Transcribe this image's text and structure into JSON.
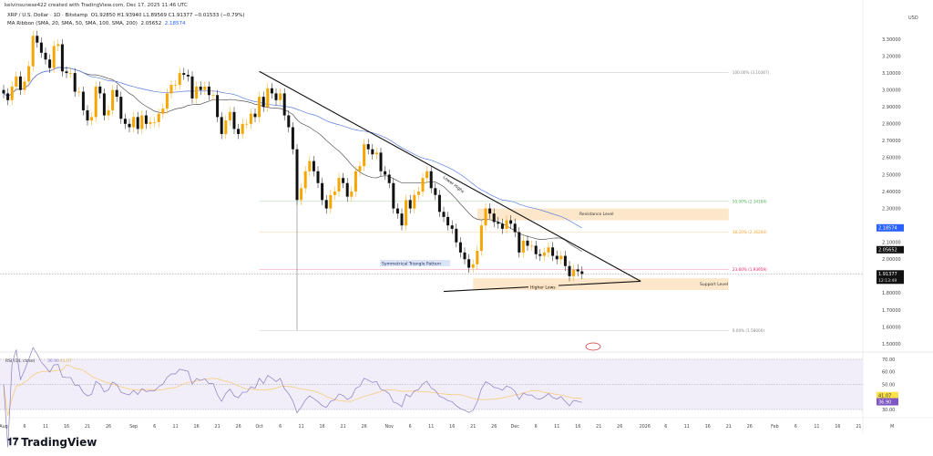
{
  "header": {
    "credit": "kelvinsunese422 created with TradingView.com, Dec 17, 2025 11:46 UTC",
    "symbol": "XRP / U.S. Dollar · 1D · Bitstamp",
    "ohlc": "O1.92850 H1.93940 L1.89569 C1.91377 −0.01533 (−0.79%)",
    "ma_label": "MA Ribbon (SMA, 20, SMA, 50, SMA, 100, SMA, 200)",
    "ma_value1": "2.05652",
    "ma_value2": "2.18574"
  },
  "price_axis": {
    "currency": "USD",
    "ticks": [
      "3.30000",
      "3.20000",
      "3.10000",
      "3.00000",
      "2.90000",
      "2.80000",
      "2.70000",
      "2.60000",
      "2.50000",
      "2.40000",
      "2.30000",
      "2.10000",
      "2.00000",
      "1.80000",
      "1.70000",
      "1.60000",
      "1.50000"
    ],
    "sma50_label": "2.18574",
    "sma20_label": "2.05652",
    "last_price_label": "1.91377",
    "countdown": "12:13:49"
  },
  "rsi": {
    "legend": "RSI (14, close)",
    "value": "36.90",
    "ma_value": "41.07",
    "ticks": [
      "70.00",
      "60.00",
      "50.00",
      "30.00"
    ],
    "value_label": "36.90",
    "ma_label": "41.07"
  },
  "time_axis": {
    "labels": [
      {
        "d": "2025-08-01",
        "t": "Aug"
      },
      {
        "d": "2025-08-06",
        "t": "6"
      },
      {
        "d": "2025-08-11",
        "t": "11"
      },
      {
        "d": "2025-08-16",
        "t": "16"
      },
      {
        "d": "2025-08-21",
        "t": "21"
      },
      {
        "d": "2025-08-26",
        "t": "26"
      },
      {
        "d": "2025-09-01",
        "t": "Sep"
      },
      {
        "d": "2025-09-06",
        "t": "6"
      },
      {
        "d": "2025-09-11",
        "t": "11"
      },
      {
        "d": "2025-09-16",
        "t": "16"
      },
      {
        "d": "2025-09-21",
        "t": "21"
      },
      {
        "d": "2025-09-26",
        "t": "26"
      },
      {
        "d": "2025-10-01",
        "t": "Oct"
      },
      {
        "d": "2025-10-06",
        "t": "6"
      },
      {
        "d": "2025-10-11",
        "t": "11"
      },
      {
        "d": "2025-10-16",
        "t": "16"
      },
      {
        "d": "2025-10-21",
        "t": "21"
      },
      {
        "d": "2025-10-26",
        "t": "26"
      },
      {
        "d": "2025-11-01",
        "t": "Nov"
      },
      {
        "d": "2025-11-06",
        "t": "6"
      },
      {
        "d": "2025-11-11",
        "t": "11"
      },
      {
        "d": "2025-11-16",
        "t": "16"
      },
      {
        "d": "2025-11-21",
        "t": "21"
      },
      {
        "d": "2025-11-26",
        "t": "26"
      },
      {
        "d": "2025-12-01",
        "t": "Dec"
      },
      {
        "d": "2025-12-06",
        "t": "6"
      },
      {
        "d": "2025-12-11",
        "t": "11"
      },
      {
        "d": "2025-12-16",
        "t": "16"
      },
      {
        "d": "2025-12-21",
        "t": "21"
      },
      {
        "d": "2025-12-26",
        "t": "26"
      },
      {
        "d": "2026-01-01",
        "t": "2026"
      },
      {
        "d": "2026-01-06",
        "t": "6"
      },
      {
        "d": "2026-01-11",
        "t": "11"
      },
      {
        "d": "2026-01-16",
        "t": "16"
      },
      {
        "d": "2026-01-21",
        "t": "21"
      },
      {
        "d": "2026-01-26",
        "t": "26"
      },
      {
        "d": "2026-02-01",
        "t": "Feb"
      },
      {
        "d": "2026-02-06",
        "t": "6"
      },
      {
        "d": "2026-02-11",
        "t": "11"
      },
      {
        "d": "2026-02-16",
        "t": "16"
      },
      {
        "d": "2026-02-21",
        "t": "21"
      },
      {
        "d": "2026-03-01",
        "t": "M"
      }
    ]
  },
  "colors": {
    "up": "#f7a600",
    "down": "#111111",
    "sma20": "#555555",
    "sma50": "#5b7fe0",
    "rsi": "#8e7cc3",
    "rsi_ma": "#f5d08a",
    "rsi_bg": "#f1eefa",
    "zone": "#fde3c2"
  },
  "chart_data": {
    "type": "candlestick",
    "start_date": "2025-08-01",
    "ylim": [
      1.45,
      3.38
    ],
    "closes": [
      2.98,
      2.94,
      3.02,
      3.08,
      3.0,
      3.05,
      3.14,
      3.32,
      3.28,
      3.22,
      3.18,
      3.13,
      3.26,
      3.27,
      3.11,
      3.1,
      3.1,
      2.99,
      2.99,
      2.88,
      2.82,
      2.84,
      3.02,
      2.98,
      2.85,
      2.88,
      3.0,
      2.96,
      2.83,
      2.8,
      2.78,
      2.84,
      2.77,
      2.85,
      2.8,
      2.81,
      2.81,
      2.86,
      2.89,
      2.98,
      3.03,
      3.03,
      3.1,
      3.09,
      3.08,
      2.95,
      3.02,
      3.0,
      3.02,
      2.97,
      2.97,
      2.84,
      2.74,
      2.82,
      2.87,
      2.77,
      2.74,
      2.8,
      2.8,
      2.86,
      2.84,
      2.96,
      2.9,
      3.01,
      2.98,
      2.94,
      2.98,
      2.85,
      2.78,
      2.65,
      2.35,
      2.42,
      2.52,
      2.58,
      2.52,
      2.45,
      2.35,
      2.3,
      2.38,
      2.4,
      2.48,
      2.45,
      2.37,
      2.4,
      2.52,
      2.55,
      2.68,
      2.65,
      2.62,
      2.63,
      2.52,
      2.5,
      2.45,
      2.3,
      2.27,
      2.2,
      2.35,
      2.3,
      2.38,
      2.4,
      2.48,
      2.52,
      2.42,
      2.38,
      2.28,
      2.25,
      2.2,
      2.18,
      2.1,
      2.04,
      2.0,
      1.95,
      1.97,
      2.05,
      2.2,
      2.3,
      2.27,
      2.22,
      2.21,
      2.18,
      2.23,
      2.21,
      2.16,
      2.04,
      2.11,
      2.08,
      2.08,
      2.03,
      2.02,
      2.04,
      2.07,
      2.02,
      2.0,
      2.02,
      1.96,
      1.9,
      1.94,
      1.9285,
      1.91377
    ],
    "notable_low": {
      "date": "2025-10-10",
      "price": 1.58
    },
    "fib_levels": [
      {
        "level": "100.00%",
        "price": 3.10367,
        "label": "100.00% (3.10367)",
        "color": "#888888"
      },
      {
        "level": "50.00%",
        "price": 2.34184,
        "label": "50.00% (2.34184)",
        "color": "#4caf50"
      },
      {
        "level": "38.20%",
        "price": 2.16204,
        "label": "38.20% (2.16204)",
        "color": "#f59f2a"
      },
      {
        "level": "23.60%",
        "price": 1.93959,
        "label": "23.60% (1.93959)",
        "color": "#e91e63"
      },
      {
        "level": "0.00%",
        "price": 1.58,
        "label": "0.00% (1.58000)",
        "color": "#888888"
      }
    ],
    "fib_range": [
      "2025-10-01",
      "2026-01-21"
    ],
    "trendlines": [
      {
        "from": [
          "2025-10-01",
          3.11
        ],
        "to": [
          "2025-12-31",
          1.87
        ]
      },
      {
        "from": [
          "2025-11-14",
          1.81
        ],
        "to": [
          "2025-12-31",
          1.87
        ]
      }
    ],
    "zones": [
      {
        "label": "Resistance Level",
        "from": [
          "2025-11-22",
          2.3
        ],
        "to": [
          "2026-01-21",
          2.23
        ]
      },
      {
        "label": "Support Level",
        "from": [
          "2025-11-21",
          1.888
        ],
        "to": [
          "2026-01-21",
          1.818
        ]
      }
    ],
    "annotations": {
      "lower_highs": "Lower Highs",
      "pattern": "Symmetrical Triangle Pattern",
      "higher_lows": "Higher Lows"
    },
    "last_price": 1.91377
  },
  "footer": {
    "brand": "TradingView"
  }
}
